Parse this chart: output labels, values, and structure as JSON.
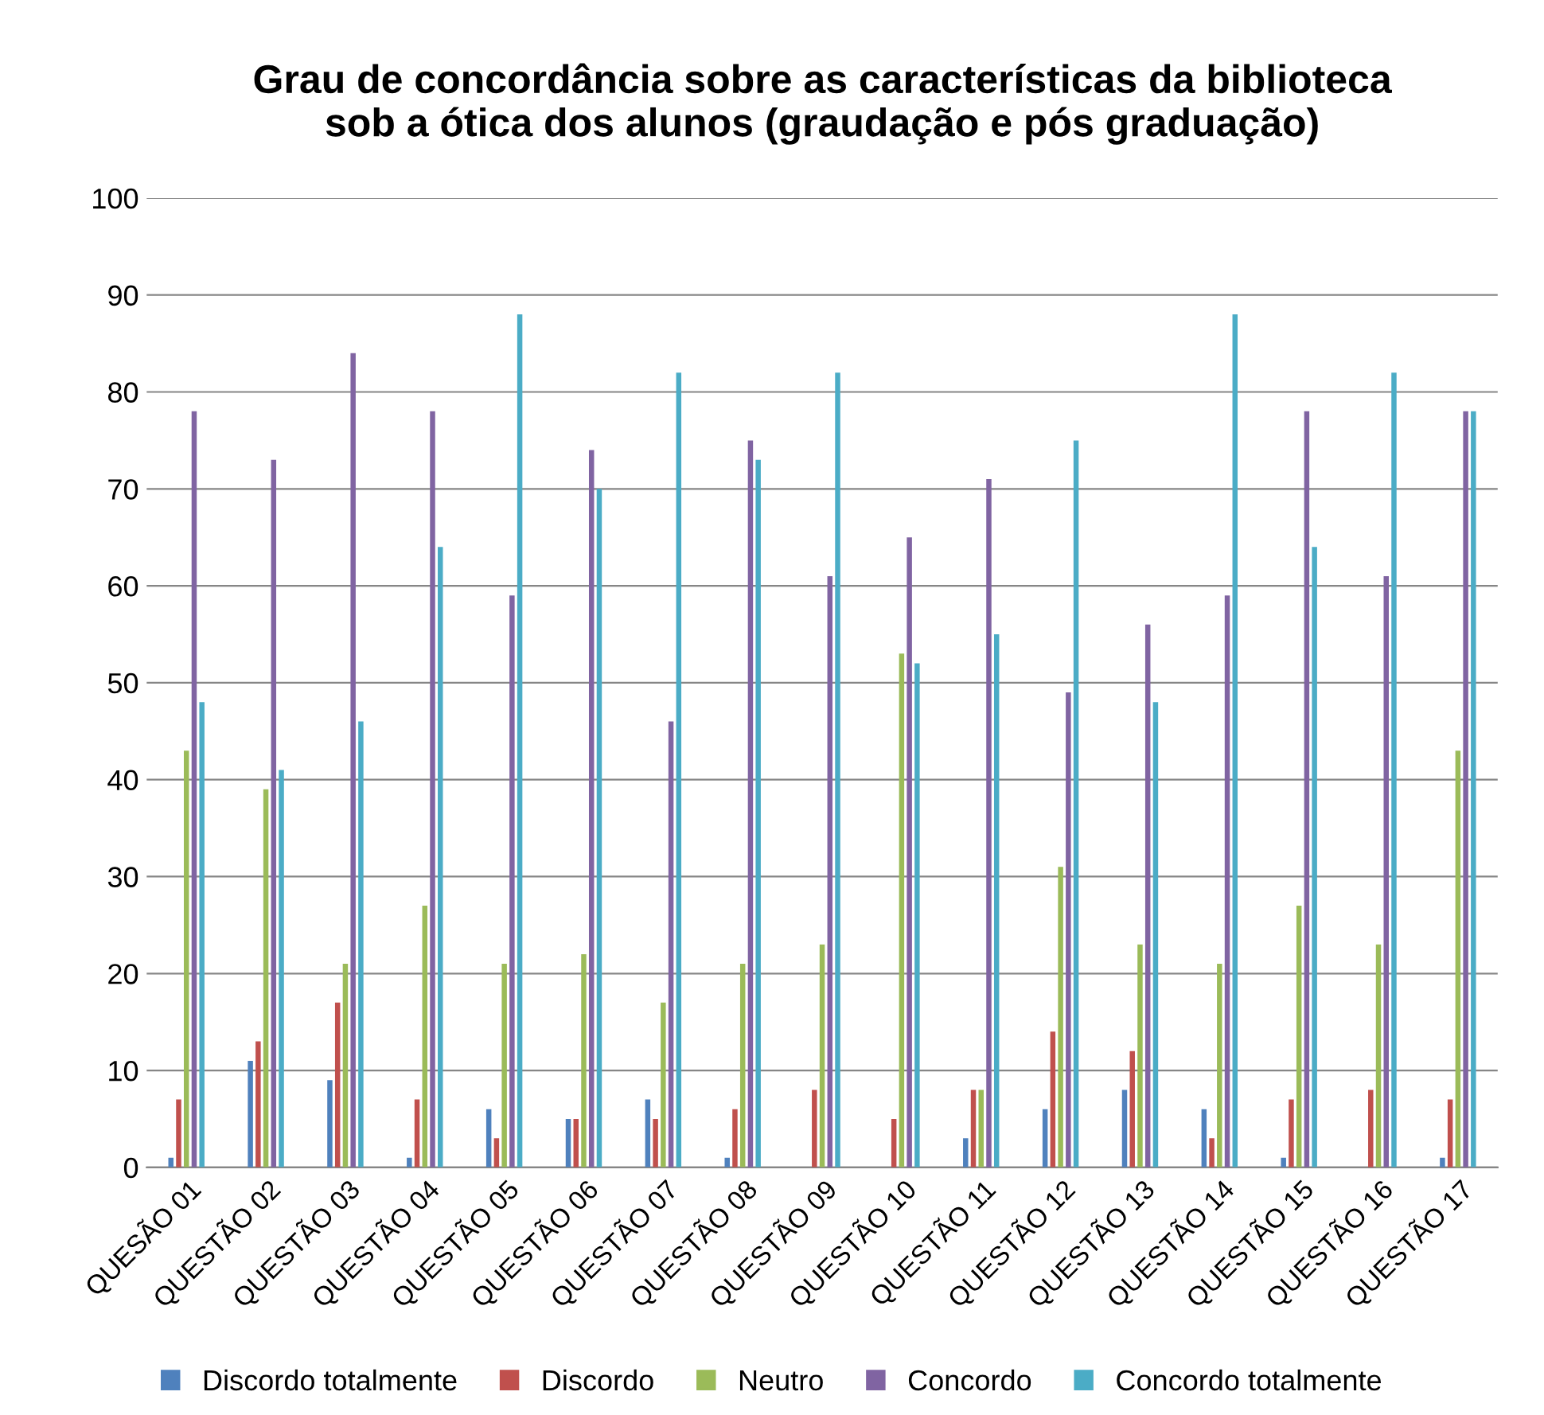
{
  "chart_data": {
    "type": "bar",
    "title": "Grau de concordância sobre as características da biblioteca\nsob a ótica dos alunos (graudação e pós graduação)",
    "categories": [
      "QUESÃO 01",
      "QUESTÃO 02",
      "QUESTÃO 03",
      "QUESTÃO 04",
      "QUESTÃO 05",
      "QUESTÃO 06",
      "QUESTÃO 07",
      "QUESTÃO 08",
      "QUESTÃO 09",
      "QUESTÃO 10",
      "QUESTÃO 11",
      "QUESTÃO 12",
      "QUESTÃO 13",
      "QUESTÃO 14",
      "QUESTÃO 15",
      "QUESTÃO 16",
      "QUESTÃO 17"
    ],
    "series": [
      {
        "name": "Discordo totalmente",
        "color": "#4f81bd",
        "values": [
          1,
          11,
          9,
          1,
          6,
          5,
          7,
          1,
          0,
          0,
          3,
          6,
          8,
          6,
          1,
          0,
          1
        ]
      },
      {
        "name": "Discordo",
        "color": "#c0504d",
        "values": [
          7,
          13,
          17,
          7,
          3,
          5,
          5,
          6,
          8,
          5,
          8,
          14,
          12,
          3,
          7,
          8,
          7
        ]
      },
      {
        "name": "Neutro",
        "color": "#9bbb59",
        "values": [
          43,
          39,
          21,
          27,
          21,
          22,
          17,
          21,
          23,
          53,
          8,
          31,
          23,
          21,
          27,
          23,
          43
        ]
      },
      {
        "name": "Concordo",
        "color": "#8064a2",
        "values": [
          78,
          73,
          84,
          78,
          59,
          74,
          46,
          75,
          61,
          65,
          71,
          49,
          56,
          59,
          78,
          61,
          78
        ]
      },
      {
        "name": "Concordo totalmente",
        "color": "#4bacc6",
        "values": [
          48,
          41,
          46,
          64,
          88,
          70,
          82,
          73,
          82,
          52,
          55,
          75,
          48,
          88,
          64,
          82,
          78
        ]
      }
    ],
    "ylim": [
      0,
      100
    ],
    "yticks": [
      0,
      10,
      20,
      30,
      40,
      50,
      60,
      70,
      80,
      90,
      100
    ],
    "grid": "y",
    "legend": "bottom"
  }
}
